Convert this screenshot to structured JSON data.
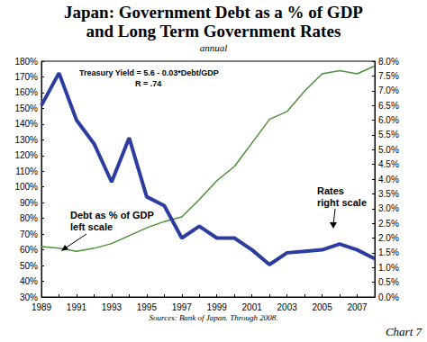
{
  "chart_data": {
    "type": "line",
    "title": "Japan: Government Debt as a % of GDP\nand Long Term Government Rates",
    "subtitle": "annual",
    "annotations": [
      "Treasury Yield = 5.6 - 0.03*Debt/GDP",
      "R = .74",
      "Debt as % of GDP\nleft scale",
      "Rates\nright scale",
      "Sources: Bank of Japan. Through 2008.",
      "Chart 7"
    ],
    "categories": [
      "1989",
      null,
      "1991",
      null,
      "1993",
      null,
      "1995",
      null,
      "1997",
      null,
      "1999",
      null,
      "2001",
      null,
      "2003",
      null,
      "2005",
      null,
      "2007",
      null
    ],
    "series": [
      {
        "color": "#4e8f3a",
        "values": [
          62,
          61,
          59,
          61,
          64,
          69,
          74,
          78,
          81,
          92,
          104,
          113,
          128,
          143,
          148,
          161,
          172,
          174,
          172,
          177
        ]
      },
      {
        "color": "#2b3ea0",
        "axis": "y2",
        "values": [
          6.5,
          7.6,
          6.0,
          5.2,
          3.9,
          5.4,
          3.4,
          3.1,
          2.0,
          2.4,
          2.0,
          2.0,
          1.6,
          1.1,
          1.5,
          1.55,
          1.6,
          1.8,
          1.6,
          1.3
        ]
      }
    ],
    "ylim": [
      30,
      180
    ],
    "yticks": [
      {
        "value": 30,
        "label": "30%"
      },
      {
        "value": 40,
        "label": "40%"
      },
      {
        "value": 50,
        "label": "50%"
      },
      {
        "value": 60,
        "label": "60%"
      },
      {
        "value": 70,
        "label": "70%"
      },
      {
        "value": 80,
        "label": "80%"
      },
      {
        "value": 90,
        "label": "90%"
      },
      {
        "value": 100,
        "label": "100%"
      },
      {
        "value": 110,
        "label": "110%"
      },
      {
        "value": 120,
        "label": "120%"
      },
      {
        "value": 130,
        "label": "130%"
      },
      {
        "value": 140,
        "label": "140%"
      },
      {
        "value": 150,
        "label": "150%"
      },
      {
        "value": 160,
        "label": "160%"
      },
      {
        "value": 170,
        "label": "170%"
      },
      {
        "value": 180,
        "label": "180%"
      }
    ],
    "y2lim": [
      0,
      8
    ],
    "y2ticks": [
      {
        "value": 0,
        "label": "0.0%"
      },
      {
        "value": 0.5,
        "label": "0.5%"
      },
      {
        "value": 1,
        "label": "1.0%"
      },
      {
        "value": 1.5,
        "label": "1.5%"
      },
      {
        "value": 2,
        "label": "2.0%"
      },
      {
        "value": 2.5,
        "label": "2.5%"
      },
      {
        "value": 3,
        "label": "3.0%"
      },
      {
        "value": 3.5,
        "label": "3.5%"
      },
      {
        "value": 4,
        "label": "4.0%"
      },
      {
        "value": 4.5,
        "label": "4.5%"
      },
      {
        "value": 5,
        "label": "5.0%"
      },
      {
        "value": 5.5,
        "label": "5.5%"
      },
      {
        "value": 6,
        "label": "6.0%"
      },
      {
        "value": 6.5,
        "label": "6.5%"
      },
      {
        "value": 7,
        "label": "7.0%"
      },
      {
        "value": 7.5,
        "label": "7.5%"
      },
      {
        "value": 8,
        "label": "8.0%"
      }
    ],
    "grid": false
  }
}
